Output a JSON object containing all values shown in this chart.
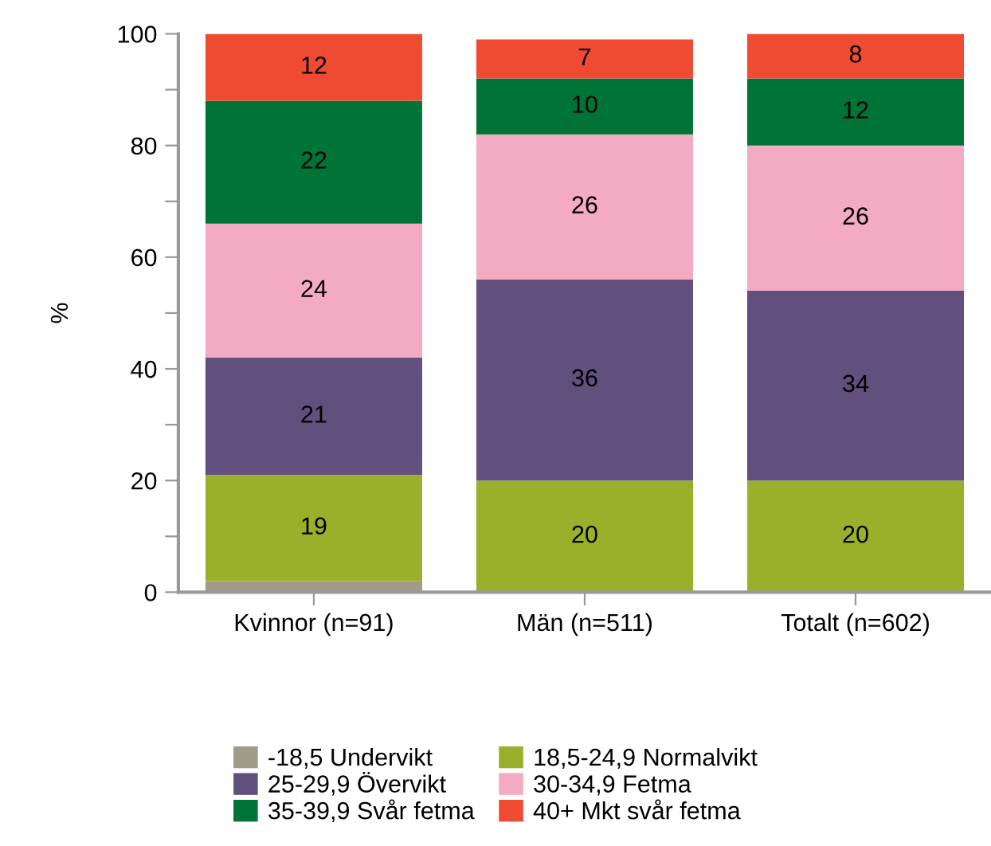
{
  "chart_data": {
    "type": "bar",
    "stacked": true,
    "ylabel": "%",
    "categories": [
      "Kvinnor (n=91)",
      "Män (n=511)",
      "Totalt (n=602)"
    ],
    "series": [
      {
        "name": "-18,5 Undervikt",
        "color": "#a09a8a",
        "values": [
          2,
          null,
          null
        ],
        "value_labels": [
          null,
          null,
          null
        ]
      },
      {
        "name": "18,5-24,9 Normalvikt",
        "color": "#9bb02a",
        "values": [
          19,
          20,
          20
        ],
        "value_labels": [
          "19",
          "20",
          "20"
        ]
      },
      {
        "name": "25-29,9 Övervikt",
        "color": "#614f7e",
        "values": [
          21,
          36,
          34
        ],
        "value_labels": [
          "21",
          "36",
          "34"
        ]
      },
      {
        "name": "30-34,9 Fetma",
        "color": "#f4aac2",
        "values": [
          24,
          26,
          26
        ],
        "value_labels": [
          "24",
          "26",
          "26"
        ]
      },
      {
        "name": "35-39,9 Svår fetma",
        "color": "#007336",
        "values": [
          22,
          10,
          12
        ],
        "value_labels": [
          "22",
          "10",
          "12"
        ]
      },
      {
        "name": "40+ Mkt svår fetma",
        "color": "#ef4a32",
        "values": [
          12,
          7,
          8
        ],
        "value_labels": [
          "12",
          "7",
          "8"
        ]
      }
    ],
    "ylim": [
      0,
      100
    ],
    "yticks": [
      0,
      {
        "value": 10,
        "label": null
      },
      20,
      {
        "value": 30,
        "label": null
      },
      40,
      {
        "value": 50,
        "label": null
      },
      60,
      {
        "value": 70,
        "label": null
      },
      80,
      {
        "value": 90,
        "label": null
      },
      100
    ],
    "grid": false,
    "legend": "bottom"
  }
}
